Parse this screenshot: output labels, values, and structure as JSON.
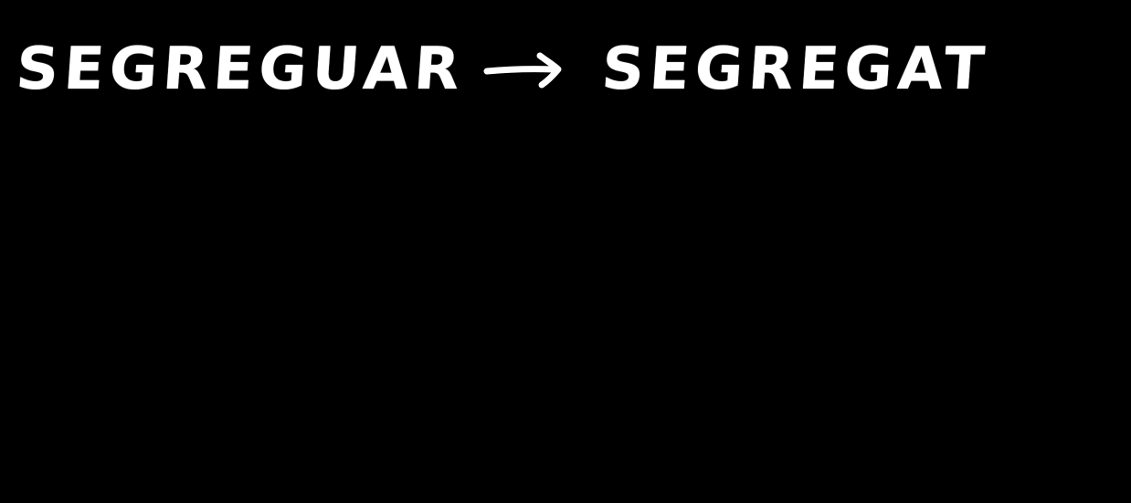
{
  "handwriting": {
    "source_word": "SEGREGUAR",
    "arrow": "→",
    "target_word": "SEGREGAT"
  },
  "colors": {
    "background": "#000000",
    "ink": "#ffffff"
  }
}
